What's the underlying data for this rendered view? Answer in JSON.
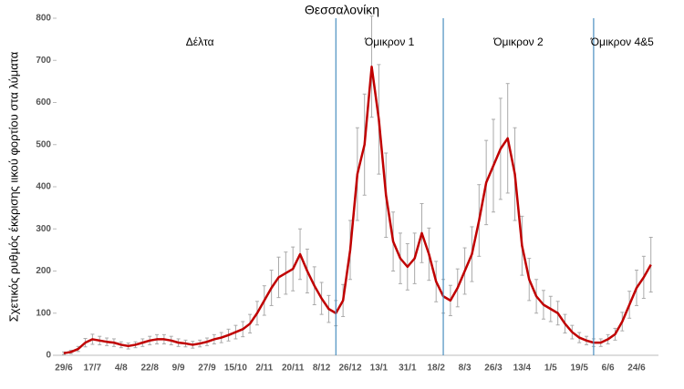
{
  "chart_data": {
    "type": "line",
    "title": "Θεσσαλονίκη",
    "ylabel": "Σχετικός ρυθμός έκκρισης ιικού φορτίου στα λύματα",
    "categories": [
      "29/6",
      null,
      null,
      null,
      "17/7",
      null,
      null,
      null,
      "4/8",
      null,
      null,
      null,
      "22/8",
      null,
      null,
      null,
      "9/9",
      null,
      null,
      null,
      "27/9",
      null,
      null,
      null,
      "15/10",
      null,
      null,
      null,
      "2/11",
      null,
      null,
      null,
      "20/11",
      null,
      null,
      null,
      "8/12",
      null,
      null,
      null,
      "26/12",
      null,
      null,
      null,
      "13/1",
      null,
      null,
      null,
      "31/1",
      null,
      null,
      null,
      "18/2",
      null,
      null,
      null,
      "8/3",
      null,
      null,
      null,
      "26/3",
      null,
      null,
      null,
      "13/4",
      null,
      null,
      null,
      "1/5",
      null,
      null,
      null,
      "19/5",
      null,
      null,
      null,
      "6/6",
      null,
      null,
      null,
      "24/6",
      null,
      null
    ],
    "series": [
      {
        "color": "#c00000",
        "values": [
          5,
          8,
          15,
          30,
          38,
          35,
          32,
          30,
          25,
          22,
          25,
          30,
          35,
          38,
          38,
          35,
          30,
          28,
          25,
          28,
          32,
          38,
          42,
          48,
          55,
          62,
          75,
          100,
          130,
          160,
          185,
          195,
          205,
          240,
          200,
          165,
          135,
          110,
          100,
          130,
          250,
          430,
          500,
          685,
          560,
          380,
          270,
          230,
          210,
          230,
          290,
          240,
          175,
          140,
          130,
          160,
          200,
          240,
          320,
          410,
          450,
          490,
          515,
          430,
          260,
          180,
          140,
          120,
          110,
          100,
          75,
          55,
          42,
          35,
          30,
          30,
          38,
          50,
          80,
          120,
          160,
          185,
          215
        ],
        "errors": [
          3,
          4,
          6,
          10,
          12,
          10,
          9,
          9,
          7,
          7,
          7,
          9,
          10,
          11,
          11,
          10,
          9,
          8,
          8,
          8,
          9,
          11,
          12,
          14,
          16,
          18,
          22,
          28,
          35,
          42,
          48,
          50,
          52,
          60,
          52,
          45,
          38,
          32,
          30,
          38,
          70,
          110,
          120,
          120,
          130,
          100,
          70,
          60,
          55,
          60,
          70,
          62,
          48,
          40,
          36,
          45,
          55,
          65,
          85,
          100,
          110,
          120,
          130,
          110,
          70,
          50,
          40,
          34,
          30,
          28,
          22,
          16,
          12,
          10,
          9,
          9,
          11,
          14,
          22,
          32,
          42,
          50,
          65
        ]
      }
    ],
    "phases": [
      "Δέλτα",
      "Όμικρον 1",
      "Όμικρον 2",
      "Όμικρον 4&5"
    ],
    "boundaries": [
      38,
      53,
      74
    ],
    "ylim": [
      0,
      800
    ],
    "yticks": [
      0,
      100,
      200,
      300,
      400,
      500,
      600,
      700,
      800
    ],
    "grid": false
  }
}
